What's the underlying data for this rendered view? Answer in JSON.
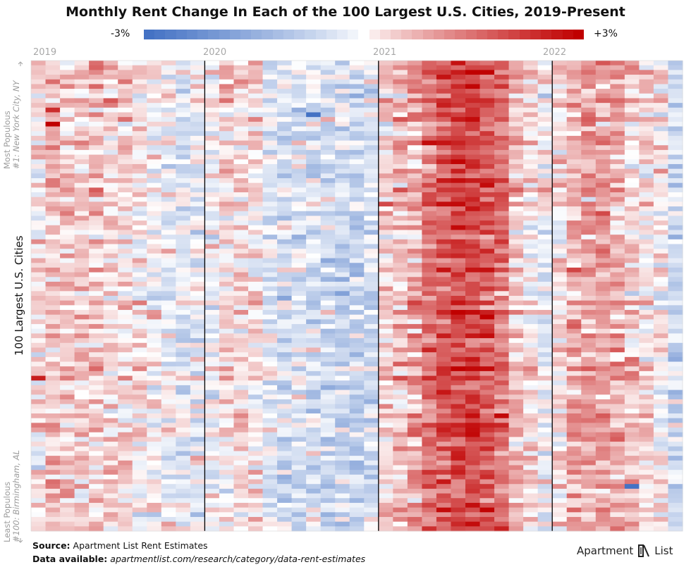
{
  "title": "Monthly Rent Change In Each of the 100 Largest U.S. Cities, 2019-Present",
  "legend": {
    "min_label": "-3%",
    "max_label": "+3%"
  },
  "side_labels": {
    "top_line1": "Most Populous",
    "top_line2": "#1: New York City, NY",
    "main": "100 Largest U.S. Cities",
    "bottom_line1": "Least Populous",
    "bottom_line2": "#100: Birmingham, AL"
  },
  "footer": {
    "source_label": "Source:",
    "source_text": "Apartment List Rent Estimates",
    "data_label": "Data available:",
    "data_text": "apartmentlist.com/research/category/data-rent-estimates"
  },
  "logo": {
    "left": "Apartment",
    "right": "List"
  },
  "colors": {
    "negative": "#4472c4",
    "neutral": "#ffffff",
    "positive": "#c00000",
    "divider": "#000000"
  },
  "chart_data": {
    "type": "heatmap",
    "title": "Monthly Rent Change In Each of the 100 Largest U.S. Cities, 2019-Present",
    "x_period_labels": [
      "2019",
      "2020",
      "2021",
      "2022"
    ],
    "months_per_period": [
      12,
      12,
      12,
      9
    ],
    "rows": 100,
    "row_order": "descending population (#1 New York City, NY at top; #100 Birmingham, AL at bottom)",
    "color_scale": {
      "min": -3,
      "max": 3,
      "unit": "%",
      "min_label": "-3%",
      "max_label": "+3%"
    },
    "column_profile_pct": [
      0.25,
      0.6,
      0.5,
      0.45,
      0.5,
      0.4,
      0.35,
      0.2,
      0.05,
      -0.1,
      -0.3,
      -0.2,
      -0.1,
      0.3,
      0.3,
      0.2,
      -0.3,
      -0.5,
      -0.4,
      -0.4,
      -0.5,
      -0.6,
      -0.6,
      -0.5,
      0.4,
      0.6,
      0.9,
      1.4,
      1.8,
      2.0,
      2.1,
      1.9,
      1.5,
      0.6,
      0.3,
      0.0,
      0.2,
      0.8,
      0.9,
      0.9,
      0.8,
      0.5,
      0.3,
      0.0,
      -0.6
    ],
    "notable_cells": [
      {
        "row": 14,
        "column": "2019-02",
        "value_pct": 3.0
      },
      {
        "row": 11,
        "column": "2019-02",
        "value_pct": 2.4
      },
      {
        "row": 12,
        "column": "2020-08",
        "value_pct": -3.0
      },
      {
        "row": 68,
        "column": "2019-01",
        "value_pct": 2.6
      },
      {
        "row": 91,
        "column": "2022-06",
        "value_pct": -3.0
      }
    ]
  }
}
